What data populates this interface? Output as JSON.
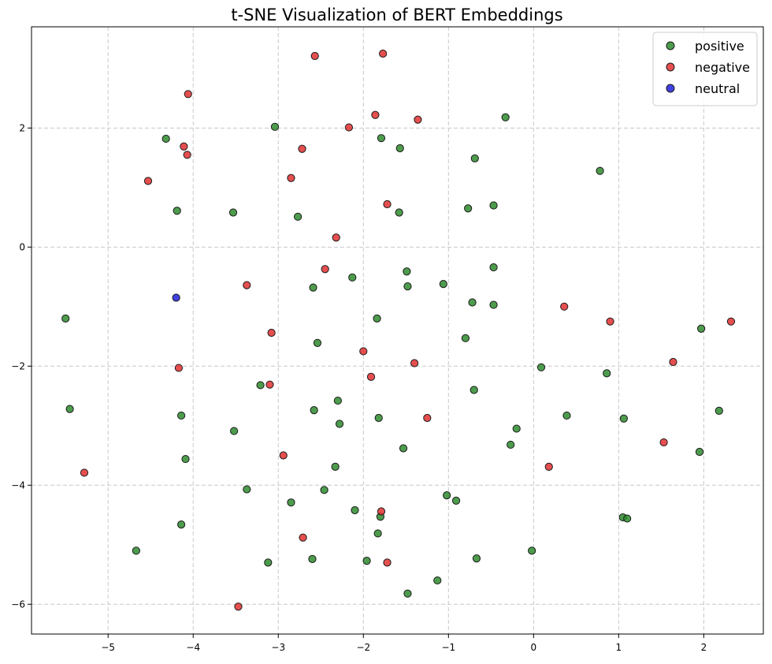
{
  "chart_data": {
    "type": "scatter",
    "title": "t-SNE Visualization of BERT Embeddings",
    "xlabel": "",
    "ylabel": "",
    "xlim": [
      -5.9,
      2.7
    ],
    "ylim": [
      -6.5,
      3.7
    ],
    "xticks": [
      -5,
      -4,
      -3,
      -2,
      -1,
      0,
      1,
      2
    ],
    "yticks": [
      -6,
      -4,
      -2,
      0,
      2
    ],
    "grid": true,
    "legend_position": "top-right",
    "series": [
      {
        "name": "positive",
        "color": "#2e8b2e",
        "points": [
          [
            -5.5,
            -1.2
          ],
          [
            -5.45,
            -2.72
          ],
          [
            -4.67,
            -5.1
          ],
          [
            -4.32,
            1.82
          ],
          [
            -4.19,
            0.61
          ],
          [
            -4.14,
            -2.83
          ],
          [
            -4.14,
            -4.66
          ],
          [
            -4.09,
            -3.56
          ],
          [
            -3.53,
            0.58
          ],
          [
            -3.52,
            -3.09
          ],
          [
            -3.37,
            -4.07
          ],
          [
            -3.21,
            -2.32
          ],
          [
            -3.12,
            -5.3
          ],
          [
            -3.04,
            2.02
          ],
          [
            -2.85,
            -4.29
          ],
          [
            -2.77,
            0.51
          ],
          [
            -2.6,
            -5.24
          ],
          [
            -2.59,
            -0.68
          ],
          [
            -2.58,
            -2.74
          ],
          [
            -2.54,
            -1.61
          ],
          [
            -2.46,
            -4.08
          ],
          [
            -2.33,
            -3.69
          ],
          [
            -2.3,
            -2.58
          ],
          [
            -2.28,
            -2.97
          ],
          [
            -2.13,
            -0.51
          ],
          [
            -2.1,
            -4.42
          ],
          [
            -1.96,
            -5.27
          ],
          [
            -1.84,
            -1.2
          ],
          [
            -1.83,
            -4.81
          ],
          [
            -1.82,
            -2.87
          ],
          [
            -1.8,
            -4.53
          ],
          [
            -1.79,
            1.83
          ],
          [
            -1.58,
            0.58
          ],
          [
            -1.57,
            1.66
          ],
          [
            -1.53,
            -3.38
          ],
          [
            -1.49,
            -0.41
          ],
          [
            -1.48,
            -0.66
          ],
          [
            -1.48,
            -5.82
          ],
          [
            -1.13,
            -5.6
          ],
          [
            -1.06,
            -0.62
          ],
          [
            -1.02,
            -4.17
          ],
          [
            -0.91,
            -4.26
          ],
          [
            -0.8,
            -1.53
          ],
          [
            -0.77,
            0.65
          ],
          [
            -0.72,
            -0.93
          ],
          [
            -0.7,
            -2.4
          ],
          [
            -0.69,
            1.49
          ],
          [
            -0.67,
            -5.23
          ],
          [
            -0.47,
            -0.34
          ],
          [
            -0.47,
            -0.97
          ],
          [
            -0.47,
            0.7
          ],
          [
            -0.33,
            2.18
          ],
          [
            -0.27,
            -3.32
          ],
          [
            -0.2,
            -3.05
          ],
          [
            -0.02,
            -5.1
          ],
          [
            0.09,
            -2.02
          ],
          [
            0.39,
            -2.83
          ],
          [
            0.78,
            1.28
          ],
          [
            0.86,
            -2.12
          ],
          [
            1.05,
            -4.54
          ],
          [
            1.06,
            -2.88
          ],
          [
            1.1,
            -4.56
          ],
          [
            1.95,
            -3.44
          ],
          [
            1.97,
            -1.37
          ],
          [
            2.18,
            -2.75
          ]
        ]
      },
      {
        "name": "negative",
        "color": "#e03030",
        "points": [
          [
            -5.28,
            -3.79
          ],
          [
            -4.53,
            1.11
          ],
          [
            -4.17,
            -2.03
          ],
          [
            -4.11,
            1.69
          ],
          [
            -4.07,
            1.55
          ],
          [
            -4.06,
            2.57
          ],
          [
            -3.37,
            -0.64
          ],
          [
            -3.1,
            -2.31
          ],
          [
            -3.08,
            -1.44
          ],
          [
            -2.94,
            -3.5
          ],
          [
            -2.85,
            1.16
          ],
          [
            -2.72,
            1.65
          ],
          [
            -2.71,
            -4.88
          ],
          [
            -2.57,
            3.21
          ],
          [
            -2.45,
            -0.37
          ],
          [
            -2.32,
            0.16
          ],
          [
            -2.17,
            2.01
          ],
          [
            -2.0,
            -1.75
          ],
          [
            -1.91,
            -2.18
          ],
          [
            -1.86,
            2.22
          ],
          [
            -1.79,
            -4.44
          ],
          [
            -1.77,
            3.25
          ],
          [
            -1.72,
            0.72
          ],
          [
            -1.72,
            -5.3
          ],
          [
            -1.4,
            -1.95
          ],
          [
            -1.36,
            2.14
          ],
          [
            -1.25,
            -2.87
          ],
          [
            0.18,
            -3.69
          ],
          [
            0.36,
            -1.0
          ],
          [
            0.9,
            -1.25
          ],
          [
            1.53,
            -3.28
          ],
          [
            1.64,
            -1.93
          ],
          [
            2.32,
            -1.25
          ],
          [
            -3.47,
            -6.04
          ]
        ]
      },
      {
        "name": "neutral",
        "color": "#2020dd",
        "points": [
          [
            -4.2,
            -0.85
          ]
        ]
      }
    ]
  }
}
